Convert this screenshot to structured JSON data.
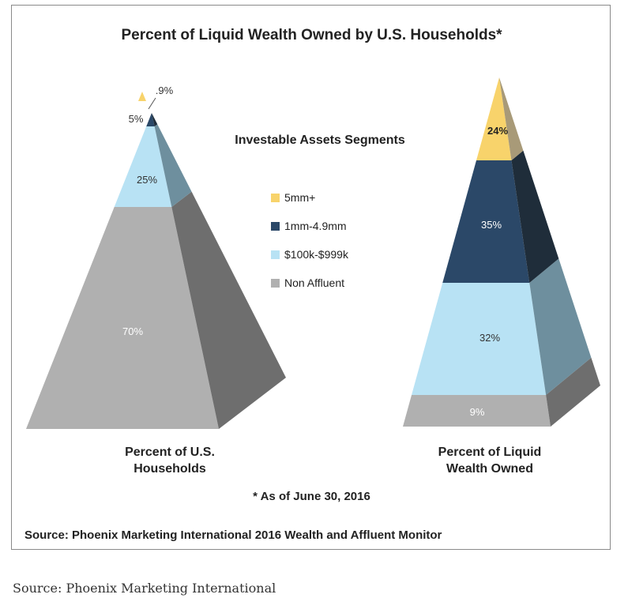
{
  "caption_below": "Source: Phoenix Marketing International",
  "colors": {
    "5mm+": "#f8d36b",
    "1mm-4.9mm": "#2b4868",
    "$100k-$999k": "#b8e2f4",
    "Non Affluent": "#b0b0b0"
  },
  "chart_data": {
    "type": "pyramid",
    "title": "Percent of Liquid Wealth Owned by U.S. Households*",
    "legend_title": "Investable Assets Segments",
    "legend_placement": "center",
    "segments": [
      "5mm+",
      "1mm-4.9mm",
      "$100k-$999k",
      "Non Affluent"
    ],
    "series": [
      {
        "name": "Percent of U.S. Households",
        "values": [
          0.9,
          5,
          25,
          70
        ],
        "labels": [
          ".9%",
          "5%",
          "25%",
          "70%"
        ]
      },
      {
        "name": "Percent of Liquid Wealth Owned",
        "values": [
          24,
          35,
          32,
          9
        ],
        "labels": [
          "24%",
          "35%",
          "32%",
          "9%"
        ]
      }
    ],
    "footnote": "* As of June 30, 2016",
    "source": "Source: Phoenix Marketing International 2016 Wealth and Affluent Monitor"
  }
}
